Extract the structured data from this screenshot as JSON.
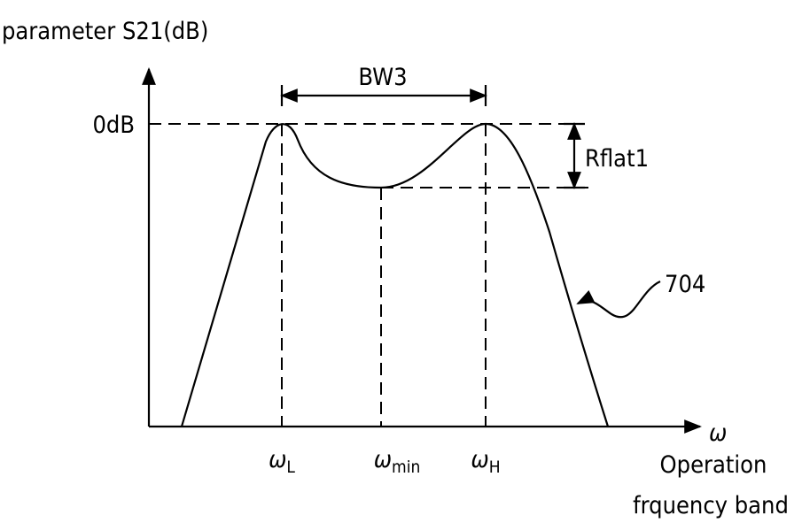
{
  "axes": {
    "y_label": "parameter  S21(dB)",
    "x_label": "ω",
    "x_caption": [
      "Operation",
      "frquency band"
    ]
  },
  "levels": {
    "top": "0dB"
  },
  "markers": [
    {
      "symbol": "ω",
      "subscript": "L"
    },
    {
      "symbol": "ω",
      "subscript": "min"
    },
    {
      "symbol": "ω",
      "subscript": "H"
    }
  ],
  "annotations": {
    "bandwidth": "BW3",
    "ripple": "Rflat1",
    "curve_ref": "704"
  }
}
